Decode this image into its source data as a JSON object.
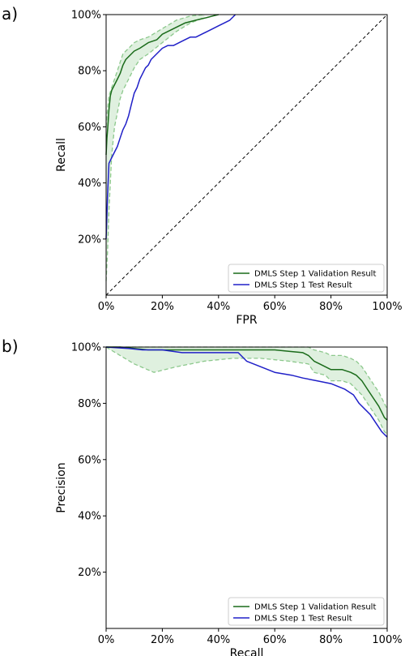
{
  "chart_data": [
    {
      "panel_label": "a)",
      "type": "line",
      "xlabel": "FPR",
      "ylabel": "Recall",
      "xlim": [
        0,
        100
      ],
      "ylim": [
        0,
        100
      ],
      "xticks": [
        "0%",
        "20%",
        "40%",
        "60%",
        "80%",
        "100%"
      ],
      "yticks": [
        "20%",
        "40%",
        "60%",
        "80%",
        "100%"
      ],
      "legend_position": "bottom-right",
      "grid": false,
      "series": [
        {
          "name": "DMLS Step 1 Validation Result",
          "color": "#1a6b1a",
          "x": [
            0,
            0.3,
            0.6,
            1,
            1.5,
            2,
            3,
            4,
            5,
            6,
            7,
            8,
            10,
            12,
            15,
            18,
            20,
            24,
            28,
            32,
            36,
            38,
            40
          ],
          "y": [
            50,
            56,
            60,
            66,
            71,
            73,
            75,
            77,
            79,
            82,
            84,
            85,
            87,
            88,
            90,
            91,
            93,
            95,
            97,
            98,
            99,
            99.5,
            100
          ]
        },
        {
          "name": "DMLS Step 1 Test Result",
          "color": "#2020c8",
          "x": [
            0,
            0.5,
            1,
            2,
            3,
            4,
            5,
            6,
            7,
            8,
            9,
            10,
            11,
            12,
            13,
            14,
            15,
            16,
            18,
            20,
            22,
            24,
            26,
            28,
            30,
            32,
            34,
            36,
            38,
            40,
            42,
            44,
            46
          ],
          "y": [
            20,
            35,
            47,
            49,
            51,
            53,
            56,
            59,
            61,
            64,
            68,
            72,
            74,
            77,
            79,
            81,
            82,
            84,
            86,
            88,
            89,
            89,
            90,
            91,
            92,
            92,
            93,
            94,
            95,
            96,
            97,
            98,
            100
          ]
        }
      ],
      "bands": [
        {
          "color": "#8cc88c",
          "x": [
            0,
            0.5,
            1,
            2,
            3,
            4,
            5,
            6,
            8,
            10,
            12,
            15,
            20,
            25,
            30,
            35
          ],
          "upper": [
            60,
            66,
            71,
            74,
            77,
            80,
            83,
            86,
            88,
            90,
            91,
            92,
            95,
            98,
            99.5,
            100
          ],
          "lower": [
            5,
            15,
            30,
            50,
            60,
            65,
            70,
            73,
            77,
            81,
            84,
            86,
            90,
            94,
            97,
            99
          ]
        }
      ],
      "reference_line": "diagonal"
    },
    {
      "panel_label": "b)",
      "type": "line",
      "xlabel": "Recall",
      "ylabel": "Precision",
      "xlim": [
        0,
        100
      ],
      "ylim": [
        0,
        100
      ],
      "xticks": [
        "0%",
        "20%",
        "40%",
        "60%",
        "80%",
        "100%"
      ],
      "yticks": [
        "20%",
        "40%",
        "60%",
        "80%",
        "100%"
      ],
      "legend_position": "bottom-right",
      "grid": false,
      "series": [
        {
          "name": "DMLS Step 1 Validation Result",
          "color": "#1a6b1a",
          "x": [
            0,
            5,
            10,
            15,
            20,
            30,
            40,
            50,
            60,
            65,
            70,
            72,
            74,
            76,
            78,
            80,
            84,
            87,
            89,
            91,
            93,
            95,
            97,
            99,
            100
          ],
          "y": [
            100,
            100,
            99.5,
            99,
            99,
            99,
            99,
            99,
            99,
            98.5,
            98,
            97,
            95,
            94,
            93,
            92,
            92,
            91,
            90,
            88,
            85,
            82,
            79,
            75,
            74
          ]
        },
        {
          "name": "DMLS Step 1 Test Result",
          "color": "#2020c8",
          "x": [
            0,
            8,
            13,
            20,
            27,
            32,
            40,
            47,
            50,
            55,
            60,
            66,
            70,
            75,
            80,
            85,
            88,
            90,
            92,
            94,
            96,
            98,
            99,
            100
          ],
          "y": [
            100,
            99.5,
            99,
            99,
            98,
            98,
            98,
            98,
            95,
            93,
            91,
            90,
            89,
            88,
            87,
            85,
            83,
            80,
            78,
            76,
            73,
            70,
            69,
            68
          ]
        }
      ],
      "bands": [
        {
          "color": "#8cc88c",
          "x": [
            0,
            5,
            10,
            17,
            25,
            35,
            45,
            55,
            65,
            72,
            74,
            78,
            80,
            84,
            87,
            89,
            91,
            93,
            95,
            97,
            99,
            100
          ],
          "upper": [
            100,
            100,
            100,
            100,
            100,
            100,
            100,
            100,
            100,
            100,
            99,
            98,
            97,
            97,
            96,
            95,
            93,
            90,
            87,
            84,
            80,
            78
          ],
          "lower": [
            100,
            97,
            94,
            91,
            93,
            95,
            96,
            96,
            95,
            94,
            91,
            90,
            88,
            88,
            87,
            85,
            83,
            80,
            77,
            74,
            70,
            69
          ]
        }
      ],
      "reference_line": "none"
    }
  ]
}
